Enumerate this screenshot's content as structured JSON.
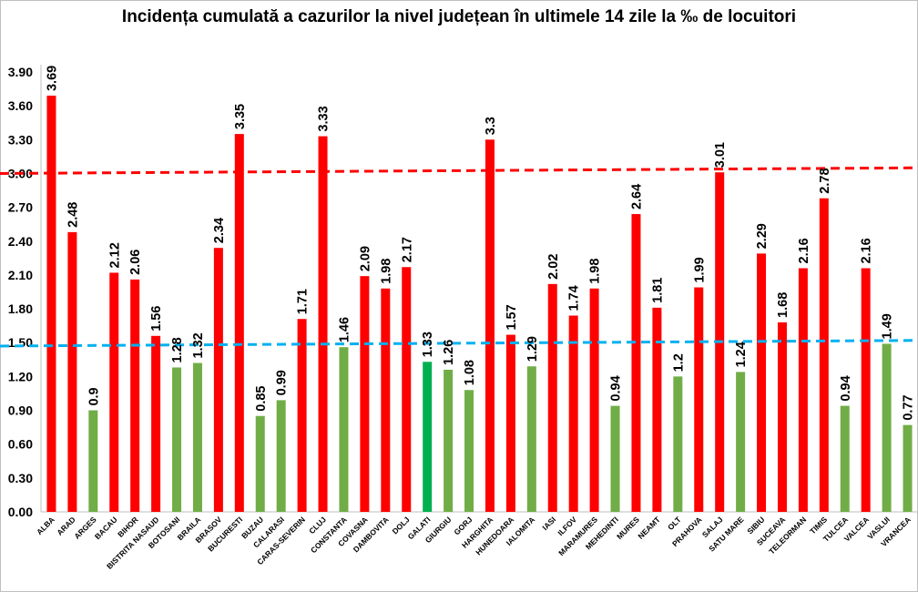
{
  "chart_data": {
    "type": "bar",
    "title": "Incidența cumulată a cazurilor la nivel județean în ultimele 14 zile la ‰ de locuitori",
    "xlabel": "",
    "ylabel": "",
    "ylim": [
      0,
      3.9
    ],
    "yticks": [
      "0.00",
      "0.30",
      "0.60",
      "0.90",
      "1.20",
      "1.50",
      "1.80",
      "2.10",
      "2.40",
      "2.70",
      "3.00",
      "3.30",
      "3.60",
      "3.90"
    ],
    "grid": false,
    "categories": [
      "ALBA",
      "ARAD",
      "ARGES",
      "BACAU",
      "BIHOR",
      "BISTRITA NASAUD",
      "BOTOSANI",
      "BRAILA",
      "BRASOV",
      "BUCURESTI",
      "BUZAU",
      "CALARASI",
      "CARAS-SEVERIN",
      "CLUJ",
      "CONSTANTA",
      "COVASNA",
      "DAMBOVITA",
      "DOLJ",
      "GALATI",
      "GIURGIU",
      "GORJ",
      "HARGHITA",
      "HUNEDOARA",
      "IALOMITA",
      "IASI",
      "ILFOV",
      "MARAMURES",
      "MEHEDINTI",
      "MURES",
      "NEAMT",
      "OLT",
      "PRAHOVA",
      "SALAJ",
      "SATU MARE",
      "SIBIU",
      "SUCEAVA",
      "TELEORMAN",
      "TIMIS",
      "TULCEA",
      "VALCEA",
      "VASLUI",
      "VRANCEA"
    ],
    "values": [
      3.69,
      2.48,
      0.9,
      2.12,
      2.06,
      1.56,
      1.28,
      1.32,
      2.34,
      3.35,
      0.85,
      0.99,
      1.71,
      3.33,
      1.46,
      2.09,
      1.98,
      2.17,
      1.33,
      1.26,
      1.08,
      3.3,
      1.57,
      1.29,
      2.02,
      1.74,
      1.98,
      0.94,
      2.64,
      1.81,
      1.2,
      1.99,
      3.01,
      1.24,
      2.29,
      1.68,
      2.16,
      2.78,
      0.94,
      2.16,
      1.49,
      0.77
    ],
    "value_labels": [
      "3.69",
      "2.48",
      "0.9",
      "2.12",
      "2.06",
      "1.56",
      "1.28",
      "1.32",
      "2.34",
      "3.35",
      "0.85",
      "0.99",
      "1.71",
      "3.33",
      "1.46",
      "2.09",
      "1.98",
      "2.17",
      "1.33",
      "1.26",
      "1.08",
      "3.3",
      "1.57",
      "1.29",
      "2.02",
      "1.74",
      "1.98",
      "0.94",
      "2.64",
      "1.81",
      "1.2",
      "1.99",
      "3.01",
      "1.24",
      "2.29",
      "1.68",
      "2.16",
      "2.78",
      "0.94",
      "2.16",
      "1.49",
      "0.77"
    ],
    "bar_colors": [
      "#ff0000",
      "#ff0000",
      "#70ad47",
      "#ff0000",
      "#ff0000",
      "#ff0000",
      "#70ad47",
      "#70ad47",
      "#ff0000",
      "#ff0000",
      "#70ad47",
      "#70ad47",
      "#ff0000",
      "#ff0000",
      "#70ad47",
      "#ff0000",
      "#ff0000",
      "#ff0000",
      "#00b050",
      "#70ad47",
      "#70ad47",
      "#ff0000",
      "#ff0000",
      "#70ad47",
      "#ff0000",
      "#ff0000",
      "#ff0000",
      "#70ad47",
      "#ff0000",
      "#ff0000",
      "#70ad47",
      "#ff0000",
      "#ff0000",
      "#70ad47",
      "#ff0000",
      "#ff0000",
      "#ff0000",
      "#ff0000",
      "#70ad47",
      "#ff0000",
      "#70ad47",
      "#70ad47"
    ],
    "reference_lines": [
      {
        "y_start": 3.0,
        "y_end": 3.05,
        "color": "#ff0000",
        "style": "dashed"
      },
      {
        "y_start": 1.47,
        "y_end": 1.52,
        "color": "#00b0f0",
        "style": "dashed"
      }
    ]
  }
}
